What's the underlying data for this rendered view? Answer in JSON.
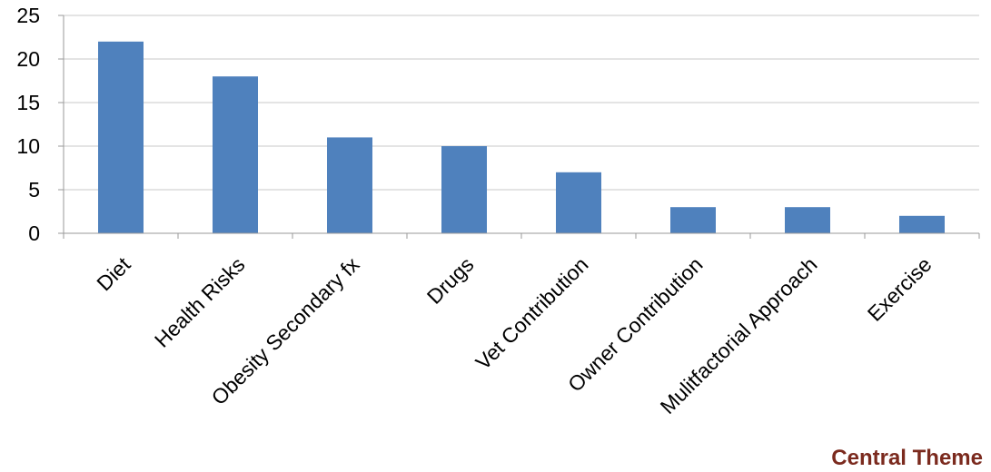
{
  "chart_data": {
    "type": "bar",
    "categories": [
      "Diet",
      "Health Risks",
      "Obesity Secondary fx",
      "Drugs",
      "Vet Contribution",
      "Owner Contribution",
      "Mulitfactorial Approach",
      "Exercise"
    ],
    "series": [
      {
        "values": [
          22,
          18,
          11,
          10,
          7,
          3,
          3,
          2
        ],
        "color": "#4F81BD"
      }
    ],
    "title": "",
    "xlabel": "Central Theme",
    "ylabel": "",
    "ylim": [
      0,
      25
    ],
    "yticks": [
      0,
      5,
      10,
      15,
      20,
      25
    ],
    "grid": true,
    "legend": "none"
  },
  "colors": {
    "bar": "#4F81BD",
    "grid": "#C8C8C8",
    "axis": "#9A9A9A",
    "xlabel_title": "#7B2A1E"
  }
}
